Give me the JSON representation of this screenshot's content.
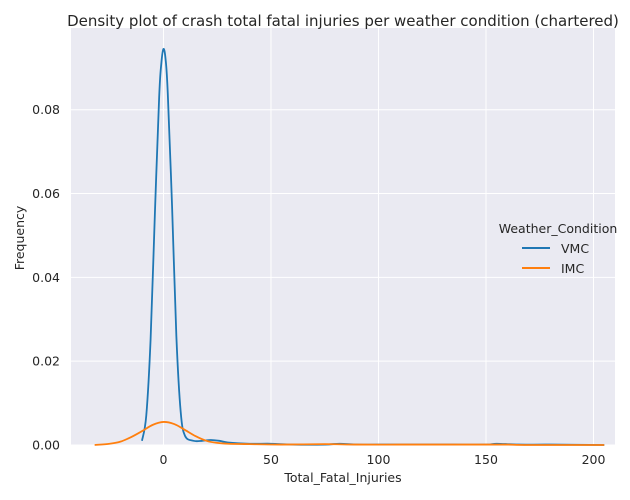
{
  "chart_data": {
    "type": "line",
    "title": "Density plot of crash total fatal injuries per weather condition (chartered)",
    "xlabel": "Total_Fatal_Injuries",
    "ylabel": "Frequency",
    "xlim": [
      -43,
      210
    ],
    "ylim": [
      0,
      0.0995
    ],
    "x_ticks": [
      0,
      50,
      100,
      150,
      200
    ],
    "y_ticks": [
      0.0,
      0.02,
      0.04,
      0.06,
      0.08
    ],
    "y_tick_labels": [
      "0.00",
      "0.02",
      "0.04",
      "0.06",
      "0.08"
    ],
    "grid": true,
    "background": "#eaeaf2",
    "legend": {
      "title": "Weather_Condition",
      "placement": "right"
    },
    "series": [
      {
        "name": "VMC",
        "color": "#1f77b4",
        "points": [
          [
            -10,
            0.001
          ],
          [
            -8,
            0.007
          ],
          [
            -6,
            0.025
          ],
          [
            -4,
            0.055
          ],
          [
            -2,
            0.083
          ],
          [
            -1,
            0.091
          ],
          [
            0,
            0.0945
          ],
          [
            1,
            0.092
          ],
          [
            2,
            0.084
          ],
          [
            4,
            0.057
          ],
          [
            6,
            0.026
          ],
          [
            8,
            0.008
          ],
          [
            10,
            0.0022
          ],
          [
            14,
            0.001
          ],
          [
            18,
            0.001
          ],
          [
            22,
            0.0012
          ],
          [
            26,
            0.001
          ],
          [
            30,
            0.0006
          ],
          [
            40,
            0.0003
          ],
          [
            50,
            0.0003
          ],
          [
            60,
            0.0001
          ],
          [
            75,
            0.0001
          ],
          [
            82,
            0.0003
          ],
          [
            90,
            0.0001
          ],
          [
            100,
            0.0001
          ],
          [
            120,
            0.0001
          ],
          [
            135,
            0.0001
          ],
          [
            150,
            0.0001
          ],
          [
            155,
            0.0003
          ],
          [
            165,
            0.0001
          ],
          [
            180,
            0.0001
          ],
          [
            205,
            0.0
          ]
        ]
      },
      {
        "name": "IMC",
        "color": "#ff7f0e",
        "points": [
          [
            -32,
            0.0
          ],
          [
            -25,
            0.0003
          ],
          [
            -20,
            0.0008
          ],
          [
            -15,
            0.0019
          ],
          [
            -10,
            0.0033
          ],
          [
            -5,
            0.0048
          ],
          [
            0,
            0.0055
          ],
          [
            5,
            0.005
          ],
          [
            10,
            0.0036
          ],
          [
            15,
            0.0021
          ],
          [
            20,
            0.001
          ],
          [
            25,
            0.0005
          ],
          [
            30,
            0.0003
          ],
          [
            40,
            0.0002
          ],
          [
            55,
            0.0001
          ],
          [
            75,
            0.0002
          ],
          [
            90,
            0.0001
          ],
          [
            110,
            0.0001
          ],
          [
            130,
            0.0001
          ],
          [
            150,
            0.0001
          ],
          [
            160,
            0.0001
          ],
          [
            170,
            0.0
          ],
          [
            205,
            0.0
          ]
        ]
      }
    ]
  }
}
